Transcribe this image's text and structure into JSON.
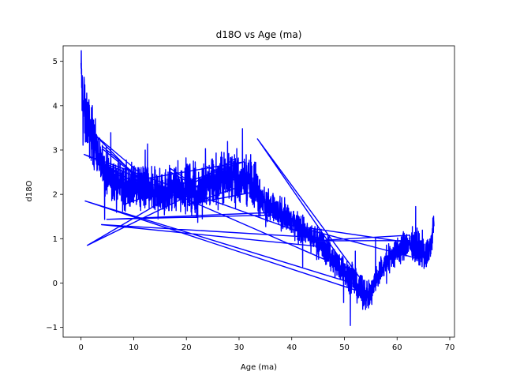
{
  "chart_data": {
    "type": "line",
    "title": "d18O vs Age (ma)",
    "xlabel": "Age (ma)",
    "ylabel": "d18O",
    "xlim": [
      -3.4,
      70.9
    ],
    "ylim": [
      -1.22,
      5.35
    ],
    "xticks": [
      0,
      10,
      20,
      30,
      40,
      50,
      60,
      70
    ],
    "yticks": [
      -1,
      0,
      1,
      2,
      3,
      4,
      5
    ],
    "line_color": "#0000ff",
    "grid": false,
    "series": [
      {
        "name": "d18O",
        "description": "noisy composite record, sorted by age with interleaved splice jumps",
        "x": [
          0.0,
          0.2,
          0.4,
          0.6,
          0.8,
          1.0,
          1.2,
          1.5,
          2.0,
          2.5,
          3.0,
          3.5,
          4.0,
          5.0,
          6.0,
          7.0,
          8.0,
          10.0,
          12.0,
          14.0,
          16.0,
          18.0,
          20.0,
          22.0,
          24.0,
          26.0,
          28.0,
          30.0,
          32.0,
          33.5,
          34.0,
          35.0,
          38.0,
          40.0,
          42.0,
          44.0,
          46.0,
          48.0,
          50.0,
          52.0,
          53.0,
          55.0,
          56.0,
          58.0,
          60.0,
          62.0,
          64.0,
          65.5,
          66.5,
          67.0
        ],
        "y": [
          4.9,
          4.3,
          3.8,
          4.2,
          3.5,
          3.9,
          3.7,
          3.5,
          3.4,
          3.2,
          3.0,
          2.8,
          2.6,
          2.5,
          2.3,
          2.3,
          2.2,
          2.1,
          2.2,
          2.0,
          2.1,
          2.1,
          2.2,
          2.0,
          2.2,
          2.3,
          2.4,
          2.4,
          2.3,
          2.2,
          1.9,
          1.75,
          1.55,
          1.4,
          1.2,
          1.0,
          0.85,
          0.5,
          0.3,
          0.0,
          -0.2,
          -0.3,
          0.1,
          0.5,
          0.7,
          0.9,
          0.8,
          0.6,
          0.9,
          1.35
        ],
        "noise": 0.45
      }
    ]
  }
}
